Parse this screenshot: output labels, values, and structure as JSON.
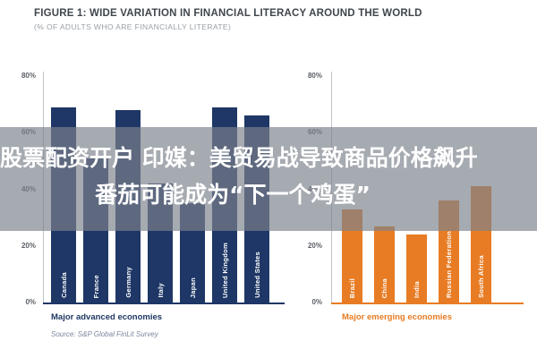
{
  "figure": {
    "title": "FIGURE 1: WIDE VARIATION IN FINANCIAL LITERACY AROUND THE WORLD",
    "subtitle": "(% OF ADULTS WHO ARE FINANCIALLY LITERATE)",
    "source": "Source: S&P Global FinLit Survey"
  },
  "overlay": {
    "line1": "股票配资开户 印媒：美贸易战导致商品价格飙升",
    "line2": "番茄可能成为“下一个鸡蛋”",
    "background": "rgba(124,130,140,0.68)",
    "text_color": "#ffffff"
  },
  "chart_data": [
    {
      "type": "bar",
      "panel": "left",
      "title": "Major advanced economies",
      "categories": [
        "Canada",
        "France",
        "Germany",
        "Italy",
        "Japan",
        "United Kingdom",
        "United States"
      ],
      "values": [
        69,
        51,
        68,
        42,
        35,
        69,
        66
      ],
      "value_unit": "%",
      "bar_color": "#1f3766",
      "title_color": "#1f3864",
      "ylim": [
        0,
        80
      ],
      "yticks": [
        "80%",
        "60%",
        "40%",
        "20%",
        "0%"
      ],
      "grid": false,
      "legend": "none"
    },
    {
      "type": "bar",
      "panel": "right",
      "title": "Major emerging economies",
      "categories": [
        "Brazil",
        "China",
        "India",
        "Russian Federation",
        "South Africa"
      ],
      "values": [
        33,
        27,
        24,
        36,
        41
      ],
      "value_unit": "%",
      "bar_color": "#e87c24",
      "title_color": "#e87c24",
      "ylim": [
        0,
        80
      ],
      "yticks": [
        "80%",
        "60%",
        "40%",
        "20%",
        "0%"
      ],
      "grid": false,
      "legend": "none"
    }
  ]
}
